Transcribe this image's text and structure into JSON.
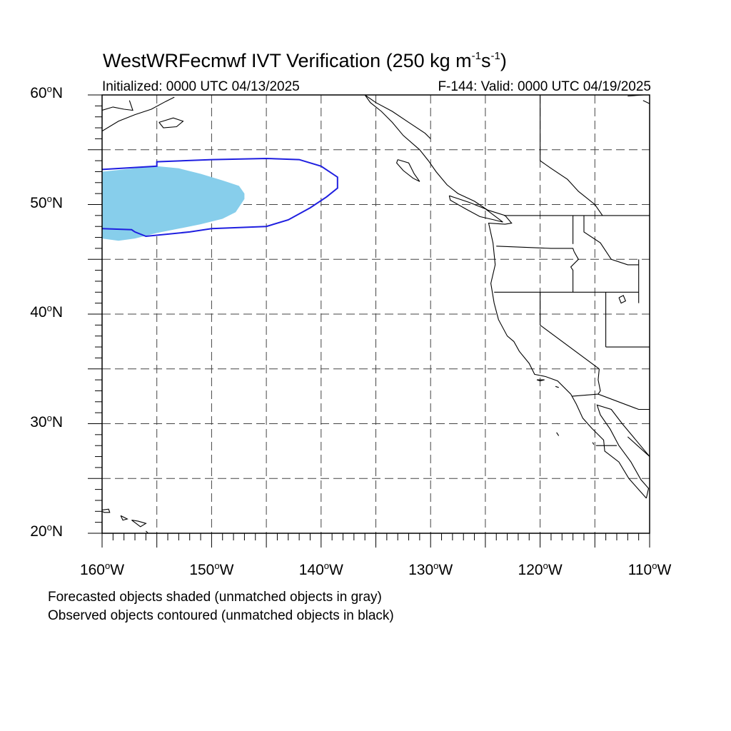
{
  "title": {
    "main": "WestWRFecmwf IVT Verification (250 kg m",
    "sup1": "-1",
    "mid": "s",
    "sup2": "-1",
    "end": ")"
  },
  "subtitle": {
    "initialized": "Initialized: 0000 UTC 04/13/2025",
    "valid": "F-144: Valid: 0000 UTC 04/19/2025"
  },
  "map": {
    "lon_range": [
      -160,
      -110
    ],
    "lat_range": [
      20,
      60
    ],
    "gridlines": "dashed",
    "lat_labels": [
      {
        "value": 60,
        "text": "60",
        "hemi": "N"
      },
      {
        "value": 50,
        "text": "50",
        "hemi": "N"
      },
      {
        "value": 40,
        "text": "40",
        "hemi": "N"
      },
      {
        "value": 30,
        "text": "30",
        "hemi": "N"
      },
      {
        "value": 20,
        "text": "20",
        "hemi": "N"
      }
    ],
    "lon_labels": [
      {
        "value": -160,
        "text": "160",
        "hemi": "W"
      },
      {
        "value": -150,
        "text": "150",
        "hemi": "W"
      },
      {
        "value": -140,
        "text": "140",
        "hemi": "W"
      },
      {
        "value": -130,
        "text": "130",
        "hemi": "W"
      },
      {
        "value": -120,
        "text": "120",
        "hemi": "W"
      },
      {
        "value": -110,
        "text": "110",
        "hemi": "W"
      }
    ],
    "forecast_object": {
      "label": "forecasted object (matched)",
      "fill_color": "#87ceeb",
      "outline": [
        [
          -160,
          53
        ],
        [
          -157,
          53.3
        ],
        [
          -155,
          53.5
        ],
        [
          -153,
          53.3
        ],
        [
          -151,
          52.8
        ],
        [
          -149,
          52.2
        ],
        [
          -147.5,
          51.7
        ],
        [
          -147,
          51
        ],
        [
          -147,
          50.5
        ],
        [
          -147.8,
          49.3
        ],
        [
          -149,
          48.7
        ],
        [
          -151,
          48.2
        ],
        [
          -153,
          47.8
        ],
        [
          -155,
          47.4
        ],
        [
          -157,
          46.9
        ],
        [
          -158.5,
          46.7
        ],
        [
          -160,
          46.9
        ]
      ]
    },
    "observed_object": {
      "label": "observed object (matched)",
      "line_color": "#1f1fe0",
      "outline": [
        [
          -160,
          53.2
        ],
        [
          -155,
          53.5
        ],
        [
          -155,
          53.9
        ],
        [
          -150,
          54.1
        ],
        [
          -145,
          54.2
        ],
        [
          -142,
          54.1
        ],
        [
          -140,
          53.5
        ],
        [
          -138.5,
          52.5
        ],
        [
          -138.5,
          51.5
        ],
        [
          -139.5,
          50.7
        ],
        [
          -141,
          49.7
        ],
        [
          -143,
          48.6
        ],
        [
          -145,
          48
        ],
        [
          -150,
          47.8
        ],
        [
          -152,
          47.5
        ],
        [
          -156,
          47.1
        ],
        [
          -157,
          47.5
        ],
        [
          -157.3,
          47.7
        ],
        [
          -160,
          47.8
        ]
      ]
    }
  },
  "notes": {
    "line1": "Forecasted objects shaded (unmatched objects in gray)",
    "line2": "Observed objects contoured (unmatched objects in black)"
  }
}
